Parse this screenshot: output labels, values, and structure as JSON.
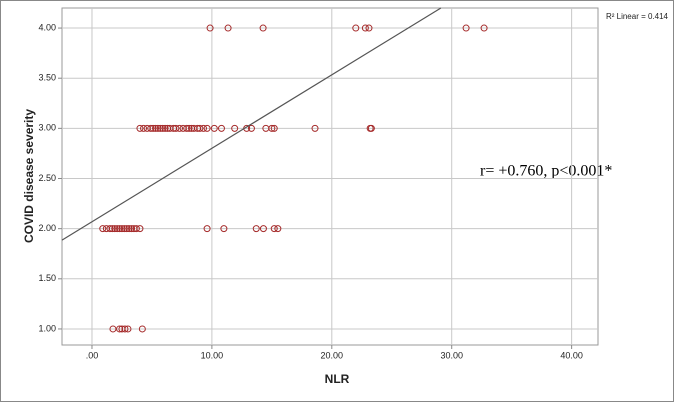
{
  "chart_data": {
    "type": "scatter",
    "x_label": "NLR",
    "y_label": "COVID disease severity",
    "annotation": "r= +0.760, p<0.001*",
    "fit_label": "R² Linear = 0.414",
    "xlim": [
      -2.5,
      42.2
    ],
    "ylim": [
      0.84,
      4.2
    ],
    "xticks": [
      {
        "value": 0,
        "label": ".00"
      },
      {
        "value": 10,
        "label": "10.00"
      },
      {
        "value": 20,
        "label": "20.00"
      },
      {
        "value": 30,
        "label": "30.00"
      },
      {
        "value": 40,
        "label": "40.00"
      }
    ],
    "yticks": [
      {
        "value": 1,
        "label": "1.00"
      },
      {
        "value": 1.5,
        "label": "1.50"
      },
      {
        "value": 2,
        "label": "2.00"
      },
      {
        "value": 2.5,
        "label": "2.50"
      },
      {
        "value": 3,
        "label": "3.00"
      },
      {
        "value": 3.5,
        "label": "3.50"
      },
      {
        "value": 4,
        "label": "4.00"
      }
    ],
    "grid": true,
    "color": "#a52a2a",
    "line_color": "#555555",
    "fit_line": {
      "x": [
        -2.5,
        29.1
      ],
      "y": [
        1.886,
        4.2
      ]
    },
    "x": [
      9.85,
      11.35,
      14.27,
      22.0,
      22.8,
      23.1,
      31.2,
      32.7,
      4.0,
      4.3,
      4.6,
      4.9,
      5.1,
      5.3,
      5.5,
      5.7,
      5.9,
      6.1,
      6.3,
      6.5,
      6.8,
      7.0,
      7.3,
      7.6,
      7.9,
      8.1,
      8.3,
      8.5,
      8.8,
      9.0,
      9.3,
      9.6,
      10.2,
      10.8,
      11.9,
      12.9,
      13.3,
      14.5,
      15.0,
      15.2,
      18.6,
      23.2,
      23.3,
      0.9,
      1.2,
      1.5,
      1.7,
      1.9,
      2.1,
      2.3,
      2.5,
      2.7,
      2.9,
      3.1,
      3.3,
      3.5,
      3.7,
      4.0,
      9.6,
      11.0,
      13.7,
      14.3,
      15.2,
      15.5,
      1.75,
      2.3,
      2.5,
      2.75,
      3.0,
      4.2
    ],
    "y": [
      4,
      4,
      4,
      4,
      4,
      4,
      4,
      4,
      3,
      3,
      3,
      3,
      3,
      3,
      3,
      3,
      3,
      3,
      3,
      3,
      3,
      3,
      3,
      3,
      3,
      3,
      3,
      3,
      3,
      3,
      3,
      3,
      3,
      3,
      3,
      3,
      3,
      3,
      3,
      3,
      3,
      3,
      3,
      2,
      2,
      2,
      2,
      2,
      2,
      2,
      2,
      2,
      2,
      2,
      2,
      2,
      2,
      2,
      2,
      2,
      2,
      2,
      2,
      2,
      1,
      1,
      1,
      1,
      1,
      1
    ]
  }
}
